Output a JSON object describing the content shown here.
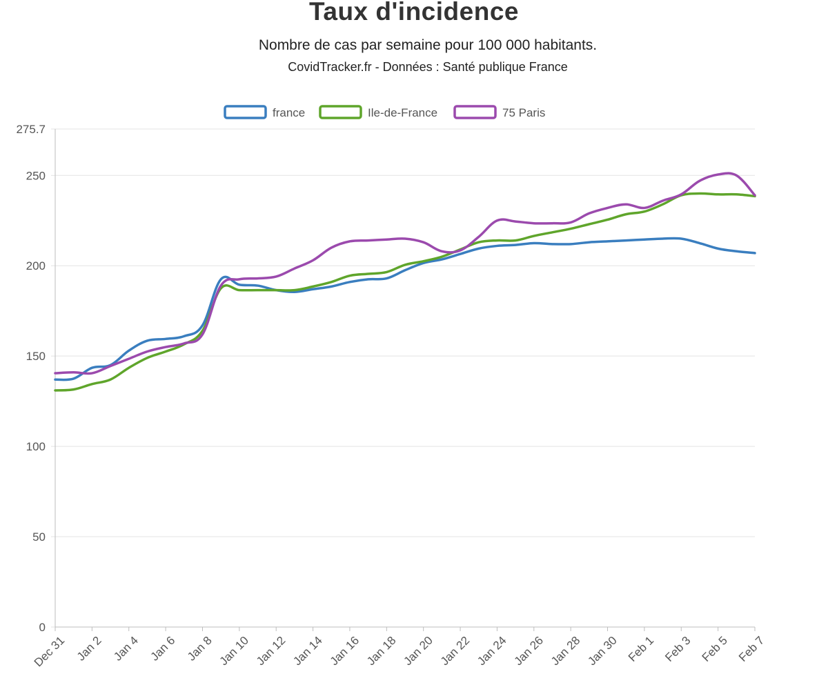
{
  "header": {
    "title": "Taux d'incidence",
    "subtitle": "Nombre de cas par semaine pour 100 000 habitants.",
    "source": "CovidTracker.fr - Données : Santé publique France"
  },
  "colors": {
    "france": "#3a7ebf",
    "idf": "#5fa52b",
    "paris": "#9b4aad",
    "grid": "#e3e3e3",
    "axis": "#bdbdbd",
    "tick_text": "#555555"
  },
  "chart_data": {
    "type": "line",
    "title": "Taux d'incidence",
    "subtitle": "Nombre de cas par semaine pour 100 000 habitants.",
    "xlabel": "",
    "ylabel": "",
    "ylim": [
      0,
      275.7
    ],
    "yticks": [
      "0",
      "50",
      "100",
      "150",
      "200",
      "250",
      "275.7"
    ],
    "ytick_values": [
      0,
      50,
      100,
      150,
      200,
      250,
      275.7
    ],
    "x_tick_labels": [
      "Dec 31",
      "Jan 2",
      "Jan 4",
      "Jan 6",
      "Jan 8",
      "Jan 10",
      "Jan 12",
      "Jan 14",
      "Jan 16",
      "Jan 18",
      "Jan 20",
      "Jan 22",
      "Jan 24",
      "Jan 26",
      "Jan 28",
      "Jan 30",
      "Feb 1",
      "Feb 3",
      "Feb 5",
      "Feb 7"
    ],
    "x": [
      "Dec 31",
      "Jan 1",
      "Jan 2",
      "Jan 3",
      "Jan 4",
      "Jan 5",
      "Jan 6",
      "Jan 7",
      "Jan 8",
      "Jan 9",
      "Jan 10",
      "Jan 11",
      "Jan 12",
      "Jan 13",
      "Jan 14",
      "Jan 15",
      "Jan 16",
      "Jan 17",
      "Jan 18",
      "Jan 19",
      "Jan 20",
      "Jan 21",
      "Jan 22",
      "Jan 23",
      "Jan 24",
      "Jan 25",
      "Jan 26",
      "Jan 27",
      "Jan 28",
      "Jan 29",
      "Jan 30",
      "Jan 31",
      "Feb 1",
      "Feb 2",
      "Feb 3",
      "Feb 4",
      "Feb 5",
      "Feb 6",
      "Feb 7"
    ],
    "legend_position": "top-center",
    "grid": true,
    "series": [
      {
        "name": "france",
        "color_key": "france",
        "values": [
          137,
          137.5,
          143.5,
          145,
          153,
          158.5,
          159.5,
          161,
          167,
          192.5,
          189.5,
          189,
          186.5,
          185.5,
          187,
          188.5,
          191,
          192.5,
          193,
          197.5,
          201.5,
          203.5,
          206.5,
          209.5,
          211,
          211.5,
          212.5,
          212,
          212,
          213,
          213.5,
          214,
          214.5,
          215,
          215,
          212.5,
          209.5,
          208,
          207
        ]
      },
      {
        "name": "Ile-de-France",
        "color_key": "idf",
        "values": [
          131,
          131.5,
          134.5,
          137,
          143.5,
          149,
          152.5,
          156.5,
          164,
          187.5,
          186.5,
          186.5,
          186.5,
          186.5,
          188.5,
          191,
          194.5,
          195.5,
          196.5,
          200.5,
          202.5,
          205,
          209,
          213,
          214,
          214,
          216.5,
          218.5,
          220.5,
          223,
          225.5,
          228.5,
          230,
          234,
          239,
          240,
          239.5,
          239.5,
          238.5
        ]
      },
      {
        "name": "75 Paris",
        "color_key": "paris",
        "values": [
          140.5,
          141,
          140.5,
          144.5,
          148.5,
          152.5,
          155,
          157,
          162,
          189,
          192.5,
          193,
          194,
          198.5,
          203,
          210,
          213.5,
          214,
          214.5,
          215,
          213,
          208,
          208.5,
          216,
          225,
          224.5,
          223.5,
          223.5,
          224,
          229,
          232,
          234,
          232,
          236,
          239.5,
          247,
          250.5,
          250,
          239
        ]
      }
    ]
  }
}
